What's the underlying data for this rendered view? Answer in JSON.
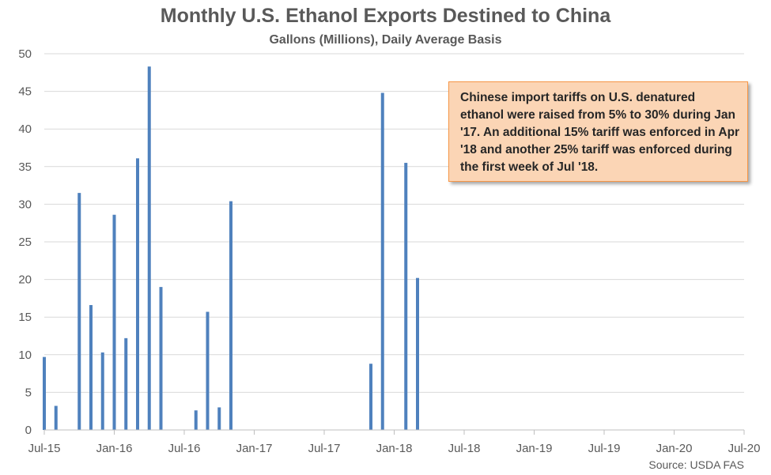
{
  "chart_data": {
    "type": "bar",
    "title": "Monthly U.S. Ethanol Exports Destined to China",
    "subtitle": "Gallons (Millions), Daily Average Basis",
    "ylim": [
      0,
      50
    ],
    "yticks": [
      0,
      5,
      10,
      15,
      20,
      25,
      30,
      35,
      40,
      45,
      50
    ],
    "xticks": [
      "Jul-15",
      "Jan-16",
      "Jul-16",
      "Jan-17",
      "Jul-17",
      "Jan-18",
      "Jul-18",
      "Jan-19",
      "Jul-19",
      "Jan-20",
      "Jul-20"
    ],
    "categories": [
      "Jul-15",
      "Aug-15",
      "Sep-15",
      "Oct-15",
      "Nov-15",
      "Dec-15",
      "Jan-16",
      "Feb-16",
      "Mar-16",
      "Apr-16",
      "May-16",
      "Jun-16",
      "Jul-16",
      "Aug-16",
      "Sep-16",
      "Oct-16",
      "Nov-16",
      "Dec-16",
      "Jan-17",
      "Feb-17",
      "Mar-17",
      "Apr-17",
      "May-17",
      "Jun-17",
      "Jul-17",
      "Aug-17",
      "Sep-17",
      "Oct-17",
      "Nov-17",
      "Dec-17",
      "Jan-18",
      "Feb-18",
      "Mar-18",
      "Apr-18",
      "May-18",
      "Jun-18",
      "Jul-18",
      "Aug-18",
      "Sep-18",
      "Oct-18",
      "Nov-18",
      "Dec-18",
      "Jan-19",
      "Feb-19",
      "Mar-19",
      "Apr-19",
      "May-19",
      "Jun-19",
      "Jul-19",
      "Aug-19",
      "Sep-19",
      "Oct-19",
      "Nov-19",
      "Dec-19",
      "Jan-20",
      "Feb-20",
      "Mar-20",
      "Apr-20",
      "May-20",
      "Jun-20",
      "Jul-20"
    ],
    "values": [
      9.7,
      3.2,
      0,
      31.5,
      16.6,
      10.3,
      28.6,
      12.2,
      36.1,
      48.3,
      19.0,
      0,
      0,
      2.6,
      15.7,
      3.0,
      30.4,
      0,
      0,
      0,
      0,
      0,
      0,
      0,
      0,
      0,
      0,
      0,
      8.8,
      44.8,
      0,
      35.5,
      20.2,
      0,
      0,
      0,
      0,
      0,
      0,
      0,
      0,
      0,
      0,
      0,
      0,
      0,
      0,
      0,
      0,
      0,
      0,
      0,
      0,
      0,
      0,
      0,
      0,
      0,
      0,
      0,
      0
    ],
    "bar_color": "#4F81BD",
    "grid_color": "#D9D9D9",
    "annotation": "Chinese import tariffs on U.S. denatured ethanol were raised from 5% to 30% during Jan '17. An additional 15% tariff was enforced in Apr '18 and another 25% tariff was enforced during the first week of Jul '18.",
    "source": "Source: USDA FAS"
  }
}
